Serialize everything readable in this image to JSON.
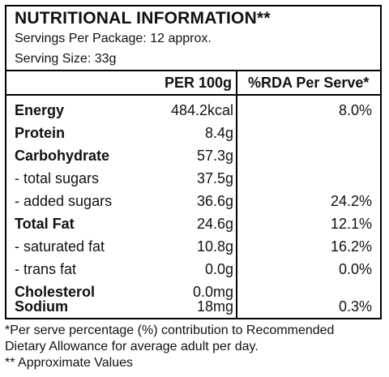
{
  "panel": {
    "title": "NUTRITIONAL INFORMATION**",
    "servings": "Servings Per Package: 12 approx.",
    "serving_size": "Serving Size: 33g",
    "header": {
      "per100": "PER 100g",
      "rda": "%RDA Per Serve*"
    },
    "rows": [
      {
        "name": "Energy",
        "value": "484.2kcal",
        "rda": "8.0%"
      },
      {
        "name": "Protein",
        "value": "8.4g",
        "rda": ""
      },
      {
        "name": "Carbohydrate",
        "value": "57.3g",
        "rda": ""
      },
      {
        "name": "- total sugars",
        "value": "37.5g",
        "rda": ""
      },
      {
        "name": "- added sugars",
        "value": "36.6g",
        "rda": "24.2%"
      },
      {
        "name": "Total Fat",
        "value": "24.6g",
        "rda": "12.1%"
      },
      {
        "name": "- saturated fat",
        "value": "10.8g",
        "rda": "16.2%"
      },
      {
        "name": "- trans fat",
        "value": "0.0g",
        "rda": "0.0%"
      },
      {
        "name": "Cholesterol",
        "value": "0.0mg",
        "rda": ""
      },
      {
        "name": "Sodium",
        "value": "18mg",
        "rda": "0.3%"
      }
    ]
  },
  "footer": {
    "line1": "*Per serve percentage (%) contribution to Recommended",
    "line2": "Dietary Allowance for average adult per day.",
    "line3": "** Approximate Values"
  }
}
